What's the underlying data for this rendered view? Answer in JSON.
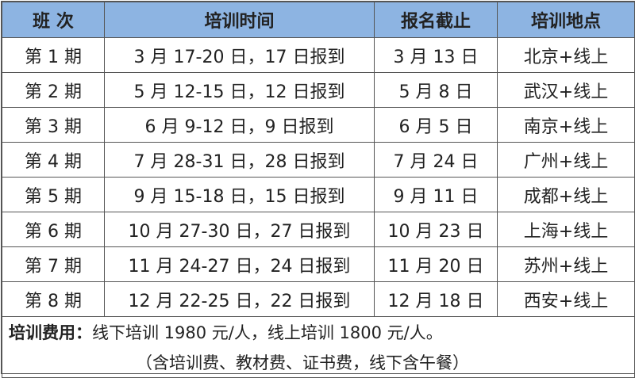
{
  "colors": {
    "header_bg": "#8db4e2",
    "border": "#555555"
  },
  "headers": [
    "班 次",
    "培训时间",
    "报名截止",
    "培训地点"
  ],
  "rows": [
    [
      "第 1 期",
      "3 月 17-20 日，17 日报到",
      "3 月 13 日",
      "北京+线上"
    ],
    [
      "第 2 期",
      "5 月 12-15 日，12 日报到",
      "5 月 8 日",
      "武汉+线上"
    ],
    [
      "第 3 期",
      "6 月 9-12 日，9 日报到",
      "6 月 5 日",
      "南京+线上"
    ],
    [
      "第 4 期",
      "7 月 28-31 日，28 日报到",
      "7 月 24 日",
      "广州+线上"
    ],
    [
      "第 5 期",
      "9 月 15-18 日，15 日报到",
      "9 月 11 日",
      "成都+线上"
    ],
    [
      "第 6 期",
      "10 月 27-30 日，27 日报到",
      "10 月 23 日",
      "上海+线上"
    ],
    [
      "第 7 期",
      "11 月 24-27 日，24 日报到",
      "11 月 20 日",
      "苏州+线上"
    ],
    [
      "第 8 期",
      "12 月 22-25 日，22 日报到",
      "12 月 18 日",
      "西安+线上"
    ]
  ],
  "footer": {
    "label": "培训费用：",
    "text": "线下培训 1980 元/人，线上培训 1800 元/人。",
    "note": "（含培训费、教材费、证书费，线下含午餐）"
  }
}
